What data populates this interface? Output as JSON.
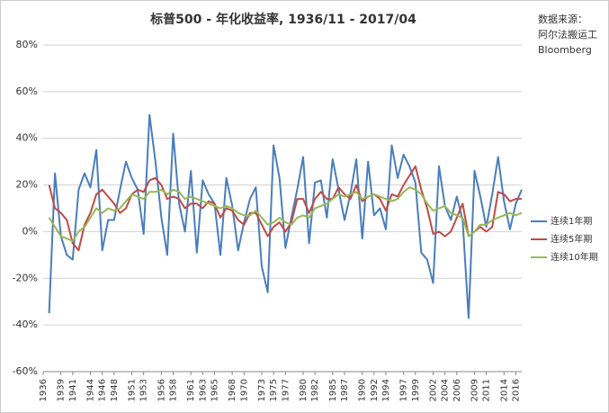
{
  "chart_data": {
    "type": "line",
    "title": "标普500 - 年化收益率, 1936/11 - 2017/04",
    "source_lines": [
      "数据来源：",
      "阿尔法搬运工",
      "Bloomberg"
    ],
    "x": [
      1937,
      1938,
      1939,
      1940,
      1941,
      1942,
      1943,
      1944,
      1945,
      1946,
      1947,
      1948,
      1949,
      1950,
      1951,
      1952,
      1953,
      1954,
      1955,
      1956,
      1957,
      1958,
      1959,
      1960,
      1961,
      1962,
      1963,
      1964,
      1965,
      1966,
      1967,
      1968,
      1969,
      1970,
      1971,
      1972,
      1973,
      1974,
      1975,
      1976,
      1977,
      1978,
      1979,
      1980,
      1981,
      1982,
      1983,
      1984,
      1985,
      1986,
      1987,
      1988,
      1989,
      1990,
      1991,
      1992,
      1993,
      1994,
      1995,
      1996,
      1997,
      1998,
      1999,
      2000,
      2001,
      2002,
      2003,
      2004,
      2005,
      2006,
      2007,
      2008,
      2009,
      2010,
      2011,
      2012,
      2013,
      2014,
      2015,
      2016,
      2017
    ],
    "series": [
      {
        "name": "连续1年期",
        "color": "#4a7ebb",
        "values": [
          -35,
          25,
          -2,
          -10,
          -12,
          18,
          25,
          19,
          35,
          -8,
          5,
          5,
          18,
          30,
          23,
          18,
          -1,
          50,
          30,
          6,
          -10,
          42,
          12,
          0,
          26,
          -9,
          22,
          16,
          12,
          -10,
          23,
          11,
          -8,
          4,
          14,
          19,
          -15,
          -26,
          37,
          23,
          -7,
          6,
          18,
          32,
          -5,
          21,
          22,
          6,
          31,
          18,
          5,
          16,
          31,
          -3,
          30,
          7,
          10,
          1,
          37,
          23,
          33,
          28,
          21,
          -9,
          -12,
          -22,
          28,
          11,
          5,
          15,
          5,
          -37,
          26,
          15,
          2,
          16,
          32,
          13,
          1,
          12,
          18
        ]
      },
      {
        "name": "连续5年期",
        "color": "#be4b48",
        "values": [
          20,
          10,
          8,
          5,
          -5,
          -8,
          3,
          8,
          16,
          18,
          15,
          12,
          8,
          10,
          16,
          18,
          17,
          22,
          23,
          20,
          14,
          15,
          14,
          10,
          12,
          12,
          10,
          13,
          12,
          6,
          10,
          9,
          5,
          3,
          8,
          8,
          3,
          -2,
          2,
          4,
          0,
          4,
          14,
          14,
          8,
          14,
          17,
          14,
          14,
          19,
          16,
          14,
          20,
          13,
          15,
          16,
          14,
          9,
          16,
          15,
          20,
          24,
          28,
          18,
          10,
          -1,
          0,
          -2,
          0,
          6,
          12,
          -2,
          0,
          2,
          0,
          2,
          17,
          16,
          13,
          14,
          14
        ]
      },
      {
        "name": "连续10年期",
        "color": "#98b954",
        "values": [
          6,
          2,
          -2,
          -3,
          -4,
          0,
          2,
          6,
          10,
          8,
          10,
          9,
          10,
          13,
          16,
          15,
          14,
          17,
          17,
          18,
          16,
          18,
          17,
          14,
          15,
          14,
          13,
          12,
          11,
          10,
          11,
          10,
          8,
          7,
          7,
          9,
          6,
          3,
          4,
          6,
          4,
          3,
          6,
          7,
          6,
          10,
          11,
          12,
          14,
          16,
          15,
          16,
          17,
          14,
          15,
          16,
          15,
          14,
          13,
          14,
          17,
          19,
          18,
          16,
          12,
          9,
          10,
          11,
          8,
          7,
          6,
          -2,
          0,
          3,
          3,
          5,
          6,
          7,
          8,
          7,
          8
        ]
      }
    ],
    "xlim": [
      1936,
      2017
    ],
    "xticks": [
      1936,
      1939,
      1941,
      1944,
      1946,
      1948,
      1951,
      1953,
      1956,
      1958,
      1961,
      1963,
      1965,
      1968,
      1970,
      1973,
      1975,
      1977,
      1980,
      1982,
      1985,
      1987,
      1990,
      1992,
      1994,
      1997,
      1999,
      2002,
      2004,
      2006,
      2009,
      2011,
      2014,
      2016
    ],
    "ylim": [
      -60,
      80
    ],
    "yticks": [
      {
        "value": -60,
        "label": "-60%"
      },
      {
        "value": -40,
        "label": "-40%"
      },
      {
        "value": -20,
        "label": "-20%"
      },
      {
        "value": 0,
        "label": "0%"
      },
      {
        "value": 20,
        "label": "20%"
      },
      {
        "value": 40,
        "label": "40%"
      },
      {
        "value": 60,
        "label": "60%"
      },
      {
        "value": 80,
        "label": "80%"
      }
    ],
    "grid": true,
    "legend": "right"
  }
}
